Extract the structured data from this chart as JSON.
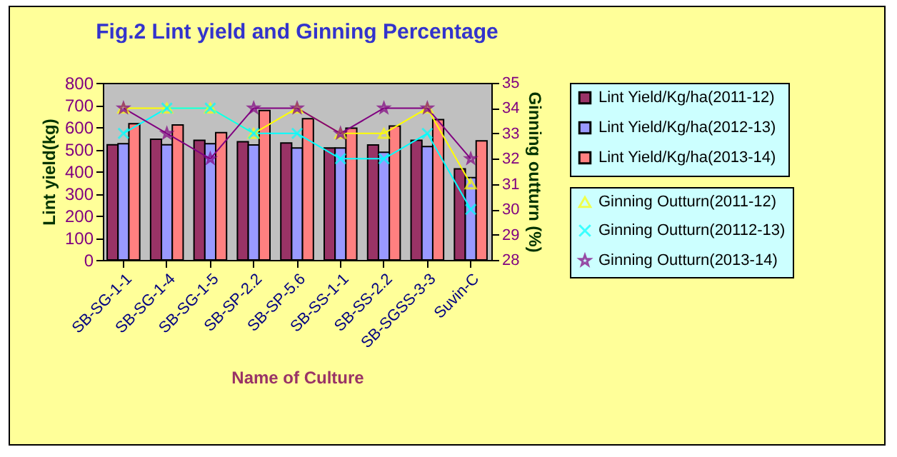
{
  "chart_data": {
    "type": "bar",
    "title": "Fig.2 Lint yield and Ginning Percentage",
    "xlabel": "Name of Culture",
    "ylabel": "Lint yield(kg)",
    "y2label": "Ginning outturn (%)",
    "categories": [
      "SB-SG-1-1",
      "SB-SG-1-4",
      "SB-SG-1-5",
      "SB-SP-2.2",
      "SB-SP-5.6",
      "SB-SS-1-1",
      "SB-SS-2.2",
      "SB-SGSS-3-3",
      "Suvin-C"
    ],
    "ylim": [
      0,
      800
    ],
    "yticks": [
      0,
      100,
      200,
      300,
      400,
      500,
      600,
      700,
      800
    ],
    "y2lim": [
      28,
      35
    ],
    "y2ticks": [
      28,
      29,
      30,
      31,
      32,
      33,
      34,
      35
    ],
    "grid": false,
    "legend": "right",
    "series": [
      {
        "name": "Lint  Yield/Kg/ha(2011-12)",
        "color": "#993366",
        "values": [
          520,
          545,
          540,
          534,
          528,
          506,
          519,
          540,
          411
        ]
      },
      {
        "name": "Lint  Yield/Kg/ha(2012-13)",
        "color": "#9999ff",
        "values": [
          525,
          520,
          525,
          519,
          506,
          506,
          486,
          512,
          372
        ]
      },
      {
        "name": "Lint  Yield/Kg/ha(2013-14)",
        "color": "#ff8080",
        "values": [
          615,
          610,
          575,
          675,
          638,
          595,
          605,
          634,
          538
        ]
      },
      {
        "name": "Ginning Outturn(2011-12)",
        "type": "line",
        "axis": "y2",
        "marker": "triangle",
        "color": "#ffff00",
        "values": [
          34,
          34,
          34,
          33,
          34,
          33,
          33,
          34,
          31
        ]
      },
      {
        "name": "Ginning Outturn(20112-13)",
        "type": "line",
        "axis": "y2",
        "marker": "cross",
        "color": "#00ffff",
        "values": [
          33,
          34,
          34,
          33,
          33,
          32,
          32,
          33,
          30
        ]
      },
      {
        "name": "Ginning Outturn(2013-14)",
        "type": "line",
        "axis": "y2",
        "marker": "star",
        "color": "#800080",
        "values": [
          34,
          33,
          32,
          34,
          34,
          33,
          34,
          34,
          32
        ]
      }
    ]
  }
}
